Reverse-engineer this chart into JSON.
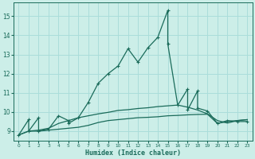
{
  "title": "",
  "xlabel": "Humidex (Indice chaleur)",
  "background_color": "#cceee8",
  "grid_color": "#aaddda",
  "line_color": "#1a6b5a",
  "xlim": [
    -0.5,
    23.5
  ],
  "ylim": [
    8.5,
    15.7
  ],
  "yticks": [
    9,
    10,
    11,
    12,
    13,
    14,
    15
  ],
  "xticks": [
    0,
    1,
    2,
    3,
    4,
    5,
    6,
    7,
    8,
    9,
    10,
    11,
    12,
    13,
    14,
    15,
    16,
    17,
    18,
    19,
    20,
    21,
    22,
    23
  ],
  "series": [
    {
      "x": [
        0,
        1,
        2,
        3,
        4,
        5,
        6,
        7,
        8,
        9,
        10,
        11,
        12,
        13,
        14,
        15,
        16,
        17,
        18,
        19,
        20,
        21,
        22,
        23
      ],
      "y": [
        8.8,
        9.0,
        9.0,
        9.05,
        9.1,
        9.15,
        9.2,
        9.3,
        9.45,
        9.55,
        9.6,
        9.65,
        9.7,
        9.72,
        9.75,
        9.8,
        9.82,
        9.85,
        9.87,
        9.88,
        9.4,
        9.5,
        9.55,
        9.6
      ],
      "marker": null,
      "linewidth": 0.9
    },
    {
      "x": [
        0,
        1,
        2,
        3,
        4,
        5,
        6,
        7,
        8,
        9,
        10,
        11,
        12,
        13,
        14,
        15,
        16,
        17,
        18,
        19,
        20,
        21,
        22,
        23
      ],
      "y": [
        8.8,
        9.0,
        9.05,
        9.15,
        9.4,
        9.55,
        9.7,
        9.8,
        9.9,
        9.98,
        10.08,
        10.12,
        10.18,
        10.22,
        10.28,
        10.32,
        10.36,
        10.25,
        10.1,
        9.9,
        9.55,
        9.42,
        9.55,
        9.6
      ],
      "marker": null,
      "linewidth": 0.9
    },
    {
      "x": [
        0,
        1,
        1,
        2,
        2,
        3,
        4,
        5,
        5,
        6,
        7,
        8,
        9,
        10,
        11,
        12,
        13,
        14,
        15,
        15,
        16,
        17,
        17,
        18,
        18,
        19,
        20,
        21,
        22,
        23
      ],
      "y": [
        8.8,
        9.6,
        9.0,
        9.7,
        9.0,
        9.1,
        9.8,
        9.55,
        9.4,
        9.7,
        10.5,
        11.5,
        12.0,
        12.4,
        13.3,
        12.6,
        13.35,
        13.9,
        15.3,
        13.55,
        10.35,
        11.2,
        10.1,
        11.1,
        10.2,
        10.05,
        9.4,
        9.55,
        9.5,
        9.5
      ],
      "marker": "+",
      "linewidth": 0.9,
      "markersize": 3.5,
      "markeredgewidth": 0.8
    }
  ]
}
